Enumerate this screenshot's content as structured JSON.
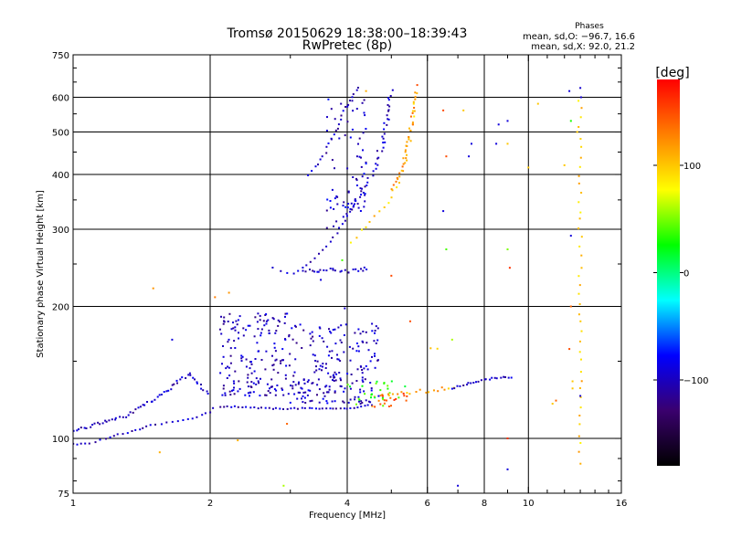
{
  "chart_data": {
    "type": "scatter",
    "title": "Tromsø 20150629 18:38:00–18:39:43",
    "subtitle": "RwPretec (8p)",
    "xlabel": "Frequency [MHz]",
    "ylabel": "Stationary phase Virtual Height [km]",
    "x_scale": "log",
    "y_scale": "log",
    "xlim": [
      1,
      16
    ],
    "ylim": [
      75,
      750
    ],
    "x_ticks": [
      1,
      2,
      4,
      6,
      8,
      10,
      16
    ],
    "x_tick_labels": [
      "1",
      "2",
      "4",
      "6",
      "8",
      "10",
      "16"
    ],
    "y_ticks": [
      75,
      100,
      200,
      300,
      400,
      500,
      600,
      750
    ],
    "y_tick_labels": [
      "75",
      "100",
      "200",
      "300",
      "400",
      "500",
      "600",
      "750"
    ],
    "x_grid": [
      2,
      4,
      6,
      8,
      10
    ],
    "y_grid": [
      100,
      200,
      300,
      400,
      500,
      600
    ],
    "grid": true,
    "stats": {
      "heading": "Phases",
      "line_o": "mean, sd,O: −96.7, 16.6",
      "line_x": "mean, sd,X:  92.0, 21.2"
    },
    "colorbar": {
      "label": "[deg]",
      "range": [
        -180,
        180
      ],
      "ticks": [
        100,
        0,
        -100
      ],
      "tick_labels": [
        "100",
        "0",
        "−100"
      ],
      "colors": [
        "#000000",
        "#3a006e",
        "#0000ff",
        "#00ffff",
        "#00ff00",
        "#ffff00",
        "#ff8000",
        "#ff0000"
      ]
    },
    "traces": [
      {
        "x": [
          1.0,
          1.06,
          1.12,
          1.18,
          1.25,
          1.32,
          1.4,
          1.48,
          1.56,
          1.65,
          1.74,
          1.83,
          1.92,
          2.0,
          2.05
        ],
        "y": [
          97,
          97,
          98,
          100,
          102,
          103,
          105,
          107,
          108,
          109,
          110,
          111,
          113,
          115,
          120
        ],
        "phase": -100,
        "jitter": 1.5,
        "density": 5
      },
      {
        "x": [
          1.0,
          1.1,
          1.2,
          1.3,
          1.4,
          1.5,
          1.6,
          1.7,
          1.8,
          1.9,
          2.0
        ],
        "y": [
          104,
          107,
          110,
          112,
          118,
          122,
          128,
          135,
          140,
          132,
          125
        ],
        "phase": -100,
        "jitter": 3,
        "density": 3
      },
      {
        "x": [
          2.1,
          2.4,
          2.7,
          3.0,
          3.3,
          3.6,
          4.0,
          4.3,
          4.6
        ],
        "y": [
          118,
          118,
          117,
          117,
          117,
          117,
          117,
          118,
          120
        ],
        "phase": -100,
        "jitter": 1.5,
        "density": 4
      },
      {
        "x": [
          2.75,
          2.85,
          2.95,
          3.05
        ],
        "y": [
          245,
          240,
          238,
          237
        ],
        "phase": -100,
        "jitter": 1.5,
        "density": 6
      },
      {
        "x": [
          3.05,
          3.2,
          3.4,
          3.6,
          3.8,
          4.0,
          4.2
        ],
        "y": [
          238,
          245,
          258,
          275,
          295,
          322,
          345
        ],
        "phase": -100,
        "jitter": 2,
        "density": 6
      },
      {
        "x": [
          3.6,
          3.9,
          4.2,
          4.4,
          4.6,
          4.75,
          4.85,
          4.9,
          4.95,
          4.98
        ],
        "y": [
          300,
          320,
          350,
          380,
          420,
          470,
          520,
          560,
          600,
          630
        ],
        "phase": -100,
        "jitter": 4,
        "density": 7
      },
      {
        "x": [
          4.2,
          4.4,
          4.6,
          4.75,
          4.85,
          4.95,
          5.0,
          5.02
        ],
        "y": [
          350,
          375,
          410,
          450,
          500,
          560,
          610,
          640
        ],
        "phase": -100,
        "jitter": 4,
        "density": 6
      },
      {
        "x": [
          3.3,
          3.5,
          3.7,
          3.9,
          4.05,
          4.2,
          4.3
        ],
        "y": [
          400,
          430,
          480,
          545,
          590,
          620,
          640
        ],
        "phase": -100,
        "jitter": 3,
        "density": 5
      },
      {
        "x": [
          3.2,
          3.6,
          4.0,
          4.5
        ],
        "y": [
          240,
          243,
          240,
          245
        ],
        "phase": -100,
        "jitter": 4,
        "density": 3
      },
      {
        "x": [
          4.1,
          4.4,
          4.7,
          4.9,
          5.1,
          5.3,
          5.45,
          5.55,
          5.6,
          5.62
        ],
        "y": [
          280,
          305,
          330,
          345,
          375,
          410,
          460,
          520,
          580,
          640
        ],
        "phase": 100,
        "jitter": 4,
        "density": 7
      },
      {
        "x": [
          5.0,
          5.2,
          5.35,
          5.5,
          5.6,
          5.65
        ],
        "y": [
          370,
          400,
          440,
          500,
          560,
          620
        ],
        "phase": 120,
        "jitter": 4,
        "density": 4
      },
      {
        "x": [
          4.6,
          5.0,
          5.4,
          5.8,
          6.2,
          6.6,
          7.0
        ],
        "y": [
          125,
          126,
          127,
          128,
          129,
          130,
          131
        ],
        "phase": 110,
        "jitter": 4,
        "density": 5
      },
      {
        "x": [
          6.1,
          6.3,
          6.5
        ],
        "y": [
          160,
          160,
          161
        ],
        "phase": 100,
        "jitter": 2,
        "density": 5
      },
      {
        "x": [
          6.8,
          7.3,
          7.8,
          8.3,
          8.8,
          9.3
        ],
        "y": [
          130,
          133,
          135,
          137,
          138,
          138
        ],
        "phase": -100,
        "jitter": 2,
        "density": 3
      },
      {
        "x": [
          13.0,
          13.0,
          13.0,
          13.0,
          13.0
        ],
        "y": [
          88,
          150,
          260,
          420,
          620
        ],
        "phase": 100,
        "jitter": 4,
        "density": 10
      }
    ],
    "clusters": [
      {
        "x": [
          2.1,
          3.0
        ],
        "y": [
          125,
          195
        ],
        "phase": -100,
        "count": 170
      },
      {
        "x": [
          3.0,
          4.7
        ],
        "y": [
          120,
          185
        ],
        "phase": -100,
        "count": 200
      },
      {
        "x": [
          3.6,
          4.4
        ],
        "y": [
          330,
          600
        ],
        "phase": -95,
        "count": 70
      },
      {
        "x": [
          4.0,
          5.4
        ],
        "y": [
          118,
          135
        ],
        "phase": 35,
        "count": 25
      },
      {
        "x": [
          4.5,
          5.5
        ],
        "y": [
          118,
          128
        ],
        "phase": 140,
        "count": 18
      }
    ],
    "scatter": [
      {
        "x": 1.5,
        "y": 220,
        "phase": 120
      },
      {
        "x": 1.55,
        "y": 93,
        "phase": 110
      },
      {
        "x": 1.65,
        "y": 168,
        "phase": -90
      },
      {
        "x": 2.2,
        "y": 215,
        "phase": 120
      },
      {
        "x": 2.05,
        "y": 210,
        "phase": 130
      },
      {
        "x": 2.3,
        "y": 99,
        "phase": 110
      },
      {
        "x": 2.95,
        "y": 108,
        "phase": 140
      },
      {
        "x": 2.9,
        "y": 78,
        "phase": 60
      },
      {
        "x": 3.5,
        "y": 230,
        "phase": -90
      },
      {
        "x": 3.9,
        "y": 255,
        "phase": 40
      },
      {
        "x": 3.95,
        "y": 198,
        "phase": -95
      },
      {
        "x": 4.4,
        "y": 620,
        "phase": 110
      },
      {
        "x": 5.0,
        "y": 235,
        "phase": 150
      },
      {
        "x": 5.5,
        "y": 185,
        "phase": 150
      },
      {
        "x": 5.7,
        "y": 640,
        "phase": 150
      },
      {
        "x": 6.5,
        "y": 560,
        "phase": 150
      },
      {
        "x": 6.5,
        "y": 330,
        "phase": -90
      },
      {
        "x": 6.6,
        "y": 270,
        "phase": 40
      },
      {
        "x": 6.6,
        "y": 440,
        "phase": 150
      },
      {
        "x": 6.8,
        "y": 168,
        "phase": 60
      },
      {
        "x": 7.2,
        "y": 560,
        "phase": 100
      },
      {
        "x": 7.4,
        "y": 440,
        "phase": -90
      },
      {
        "x": 7.5,
        "y": 470,
        "phase": -90
      },
      {
        "x": 7.0,
        "y": 78,
        "phase": -90
      },
      {
        "x": 8.5,
        "y": 470,
        "phase": -90
      },
      {
        "x": 8.6,
        "y": 520,
        "phase": -90
      },
      {
        "x": 9.0,
        "y": 530,
        "phase": -90
      },
      {
        "x": 9.0,
        "y": 470,
        "phase": 100
      },
      {
        "x": 9.0,
        "y": 270,
        "phase": 50
      },
      {
        "x": 9.1,
        "y": 245,
        "phase": 160
      },
      {
        "x": 9.0,
        "y": 100,
        "phase": 160
      },
      {
        "x": 9.0,
        "y": 85,
        "phase": -90
      },
      {
        "x": 10.0,
        "y": 415,
        "phase": 100
      },
      {
        "x": 10.5,
        "y": 580,
        "phase": 100
      },
      {
        "x": 11.3,
        "y": 120,
        "phase": 100
      },
      {
        "x": 11.5,
        "y": 122,
        "phase": 140
      },
      {
        "x": 12.0,
        "y": 420,
        "phase": 100
      },
      {
        "x": 12.3,
        "y": 620,
        "phase": -90
      },
      {
        "x": 12.4,
        "y": 530,
        "phase": 30
      },
      {
        "x": 12.4,
        "y": 290,
        "phase": -90
      },
      {
        "x": 12.4,
        "y": 200,
        "phase": 140
      },
      {
        "x": 12.3,
        "y": 160,
        "phase": 150
      },
      {
        "x": 12.5,
        "y": 135,
        "phase": 100
      },
      {
        "x": 12.5,
        "y": 130,
        "phase": 100
      },
      {
        "x": 12.8,
        "y": 500,
        "phase": 100
      },
      {
        "x": 13.05,
        "y": 600,
        "phase": -95
      },
      {
        "x": 13.0,
        "y": 630,
        "phase": -95
      },
      {
        "x": 13.0,
        "y": 125,
        "phase": -95
      }
    ]
  }
}
